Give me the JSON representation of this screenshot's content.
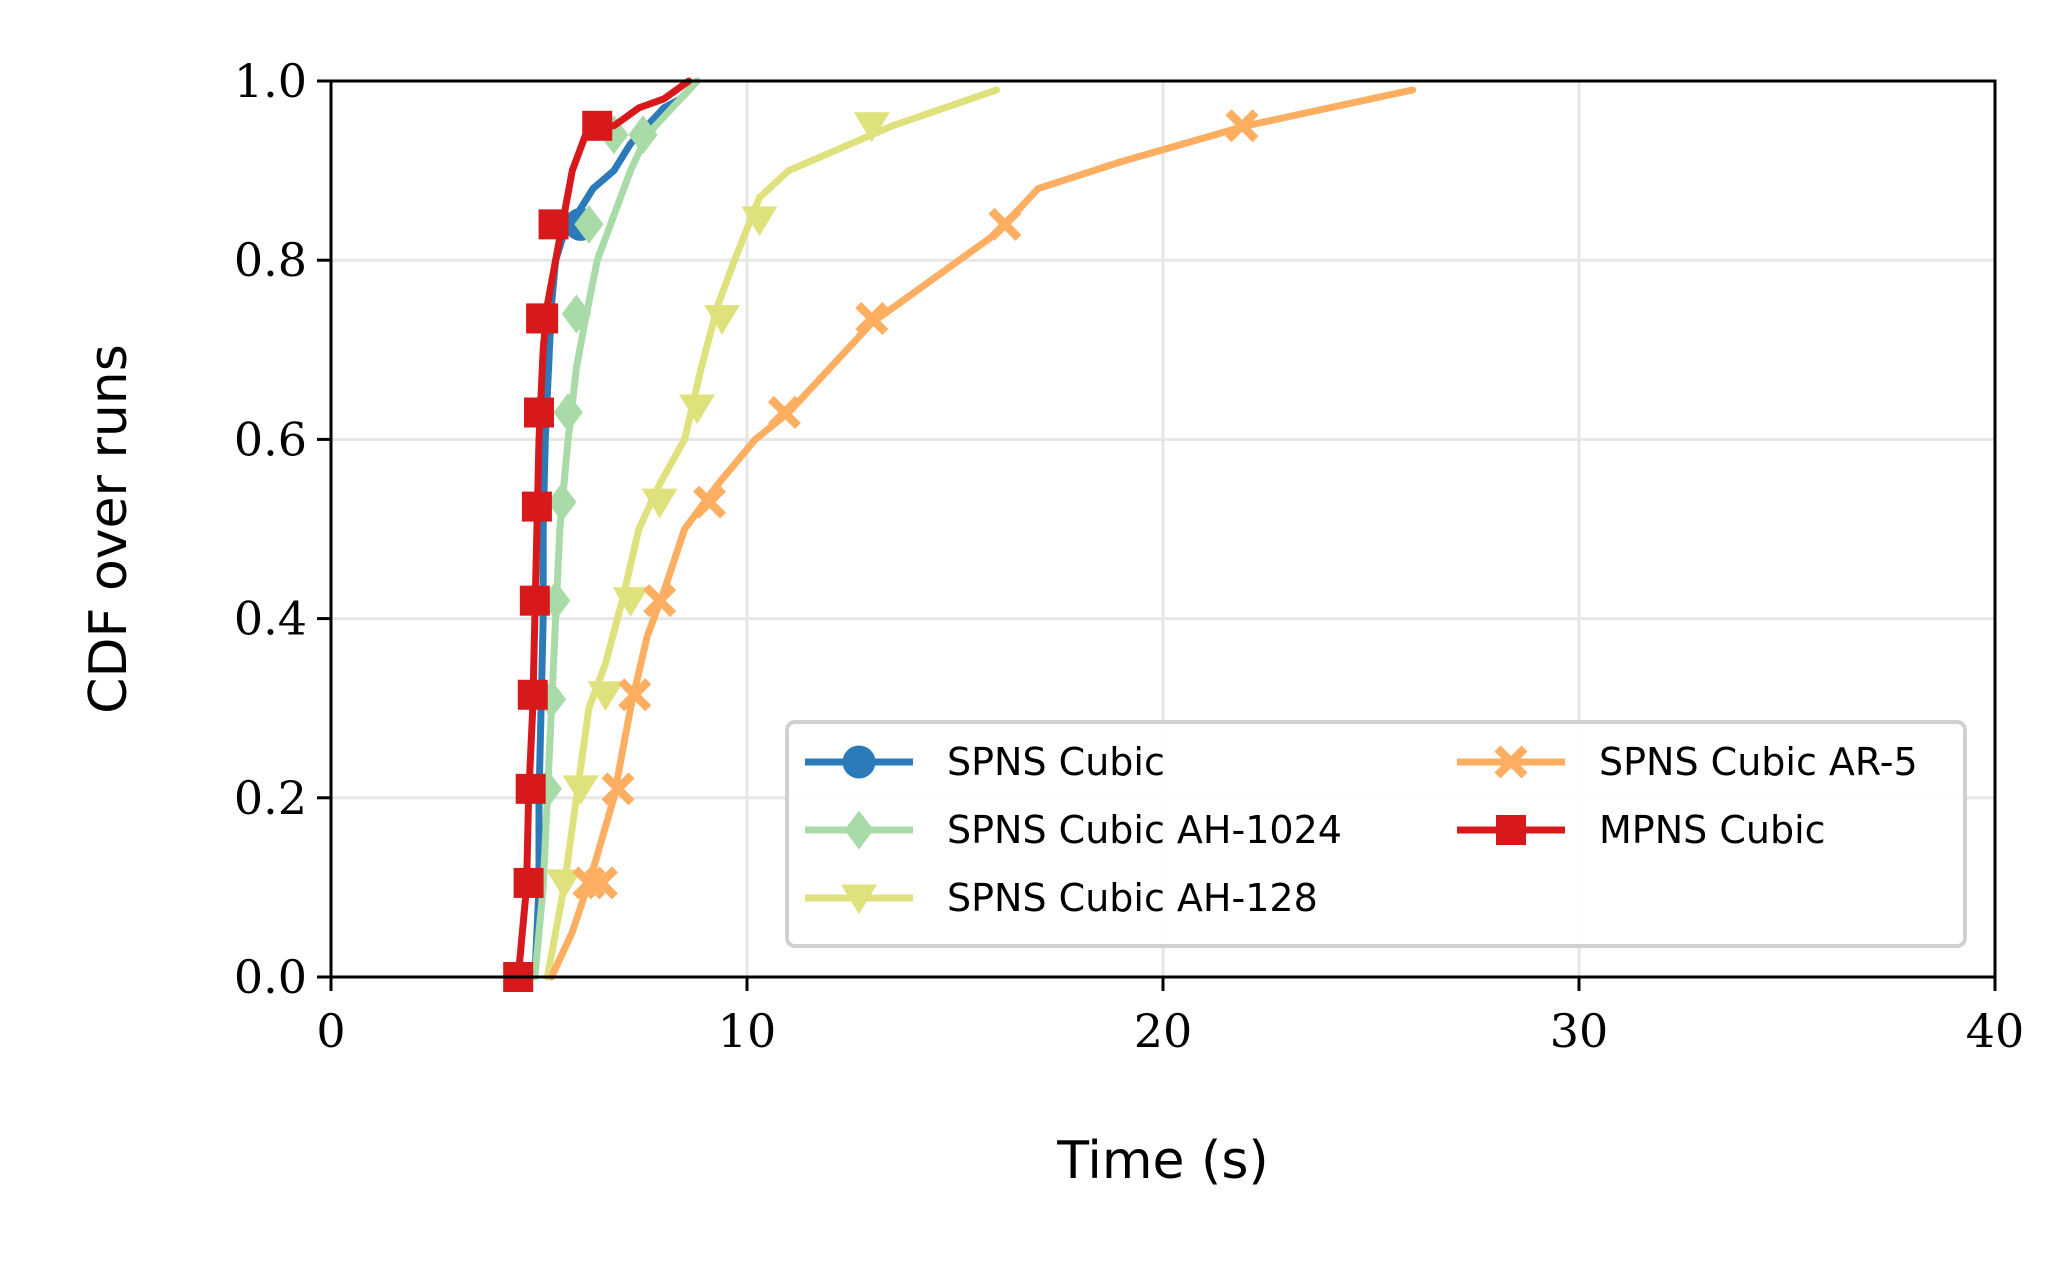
{
  "chart_data": {
    "type": "line",
    "subtype": "cdf",
    "title": "",
    "xlabel": "Time (s)",
    "ylabel": "CDF over runs",
    "xlim": [
      0,
      40
    ],
    "ylim": [
      0,
      1.0
    ],
    "xticks": [
      0,
      10,
      20,
      30,
      40
    ],
    "xtick_labels": [
      "0",
      "10",
      "20",
      "30",
      "40"
    ],
    "yticks": [
      0.0,
      0.2,
      0.4,
      0.6,
      0.8,
      1.0
    ],
    "ytick_labels": [
      "0.0",
      "0.2",
      "0.4",
      "0.6",
      "0.8",
      "1.0"
    ],
    "grid": true,
    "legend_position": "lower-right",
    "legend_columns": 2,
    "series": [
      {
        "name": "SPNS Cubic",
        "color": "#2b7bba",
        "marker": "circle",
        "x": [
          4.9,
          5.0,
          5.0,
          5.05,
          5.1,
          5.1,
          5.15,
          5.2,
          5.25,
          5.3,
          5.4,
          5.6,
          5.9,
          6.3,
          6.8,
          7.2,
          7.6,
          8.0,
          8.4,
          8.8
        ],
        "y": [
          0.0,
          0.1,
          0.2,
          0.3,
          0.4,
          0.5,
          0.6,
          0.65,
          0.7,
          0.75,
          0.8,
          0.83,
          0.85,
          0.88,
          0.9,
          0.93,
          0.95,
          0.97,
          0.98,
          1.0
        ],
        "marker_x": [
          6.0
        ],
        "marker_y": [
          0.84
        ]
      },
      {
        "name": "SPNS Cubic AH-1024",
        "color": "#a8dba8",
        "marker": "diamond",
        "x": [
          4.9,
          5.1,
          5.2,
          5.3,
          5.4,
          5.5,
          5.7,
          5.9,
          6.1,
          6.4,
          6.8,
          7.2,
          7.6,
          8.0,
          8.4,
          8.8
        ],
        "y": [
          0.0,
          0.1,
          0.2,
          0.3,
          0.4,
          0.5,
          0.6,
          0.68,
          0.73,
          0.8,
          0.85,
          0.9,
          0.94,
          0.96,
          0.98,
          1.0
        ],
        "marker_x": [
          5.2,
          5.3,
          5.4,
          5.55,
          5.7,
          5.9,
          6.2,
          6.8,
          7.5
        ],
        "marker_y": [
          0.21,
          0.31,
          0.42,
          0.53,
          0.63,
          0.74,
          0.84,
          0.94,
          0.94
        ]
      },
      {
        "name": "SPNS Cubic AH-128",
        "color": "#dfe27c",
        "marker": "triangle-down",
        "x": [
          5.2,
          5.6,
          5.9,
          6.2,
          6.6,
          7.0,
          7.4,
          7.9,
          8.5,
          8.9,
          9.3,
          9.7,
          10.3,
          11.0,
          12.0,
          13.5,
          16.0
        ],
        "y": [
          0.0,
          0.1,
          0.2,
          0.3,
          0.35,
          0.42,
          0.5,
          0.55,
          0.6,
          0.68,
          0.75,
          0.8,
          0.87,
          0.9,
          0.92,
          0.95,
          0.99
        ],
        "marker_x": [
          5.6,
          6.0,
          6.6,
          7.2,
          7.9,
          8.8,
          9.4,
          10.3,
          13.0
        ],
        "marker_y": [
          0.105,
          0.21,
          0.315,
          0.42,
          0.53,
          0.635,
          0.735,
          0.845,
          0.95
        ]
      },
      {
        "name": "SPNS Cubic AR-5",
        "color": "#fdae61",
        "marker": "x-filled",
        "x": [
          5.3,
          5.8,
          6.3,
          6.8,
          7.2,
          7.6,
          8.0,
          8.5,
          9.3,
          10.2,
          11.0,
          12.0,
          13.0,
          14.5,
          16.0,
          17.0,
          19.0,
          22.0,
          24.0,
          26.0
        ],
        "y": [
          0.0,
          0.05,
          0.12,
          0.2,
          0.3,
          0.38,
          0.43,
          0.5,
          0.55,
          0.6,
          0.63,
          0.68,
          0.73,
          0.78,
          0.83,
          0.88,
          0.91,
          0.95,
          0.97,
          0.99
        ],
        "marker_x": [
          6.2,
          6.5,
          6.9,
          7.3,
          7.9,
          9.1,
          10.9,
          13.0,
          16.2,
          21.9
        ],
        "marker_y": [
          0.105,
          0.105,
          0.21,
          0.315,
          0.42,
          0.53,
          0.63,
          0.735,
          0.84,
          0.95
        ]
      },
      {
        "name": "MPNS Cubic",
        "color": "#d7191c",
        "marker": "square",
        "x": [
          4.5,
          4.6,
          4.7,
          4.75,
          4.8,
          4.85,
          4.9,
          4.95,
          5.0,
          5.05,
          5.1,
          5.2,
          5.4,
          5.6,
          5.8,
          6.2,
          6.8,
          7.4,
          8.0,
          8.6
        ],
        "y": [
          0.0,
          0.05,
          0.1,
          0.2,
          0.25,
          0.3,
          0.4,
          0.5,
          0.6,
          0.65,
          0.7,
          0.75,
          0.8,
          0.85,
          0.9,
          0.95,
          0.95,
          0.97,
          0.98,
          1.0
        ],
        "marker_x": [
          4.5,
          4.75,
          4.8,
          4.85,
          4.9,
          4.95,
          5.0,
          5.05,
          5.1,
          5.35,
          6.4
        ],
        "marker_y": [
          0.0,
          0.105,
          0.21,
          0.315,
          0.42,
          0.525,
          0.63,
          0.735,
          0.735,
          0.84,
          0.95
        ]
      }
    ]
  }
}
